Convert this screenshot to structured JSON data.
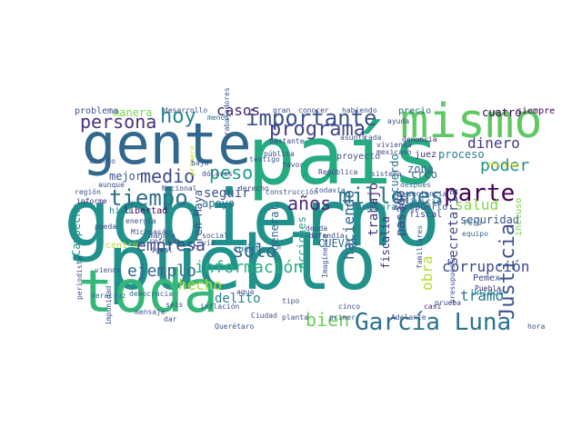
{
  "cloud": {
    "words": [
      {
        "text": "gobierno",
        "color": "#21918c"
      },
      {
        "text": "pueblo",
        "color": "#21918c"
      },
      {
        "text": "país",
        "color": "#25ab82"
      },
      {
        "text": "gente",
        "color": "#31688e"
      },
      {
        "text": "toda",
        "color": "#35b779"
      },
      {
        "text": "mismo",
        "color": "#5ec962"
      },
      {
        "text": "García Luna",
        "color": "#2c728e"
      },
      {
        "text": "importante",
        "color": "#3b528b"
      },
      {
        "text": "parte",
        "color": "#440154"
      },
      {
        "text": "tiempo",
        "color": "#2e6f8e"
      },
      {
        "text": "millones",
        "color": "#2a788e"
      },
      {
        "text": "programa",
        "color": "#414487"
      },
      {
        "text": "hoy",
        "color": "#25858e"
      },
      {
        "text": "persona",
        "color": "#46327e"
      },
      {
        "text": "peso",
        "color": "#1f9e89"
      },
      {
        "text": "medio",
        "color": "#3e4989"
      },
      {
        "text": "información",
        "color": "#29af7f"
      },
      {
        "text": "ejemplo",
        "color": "#31688e"
      },
      {
        "text": "Justicia",
        "color": "#3b528b"
      },
      {
        "text": "años",
        "color": "#482878"
      },
      {
        "text": "sólo",
        "color": "#31688e"
      },
      {
        "text": "poder",
        "color": "#218f8d"
      },
      {
        "text": "empresa",
        "color": "#3e4989"
      },
      {
        "text": "bien",
        "color": "#6ece58"
      },
      {
        "text": "hecho",
        "color": "#a5db36"
      },
      {
        "text": "corrupción",
        "color": "#3e4989"
      },
      {
        "text": "tramo",
        "color": "#2a788e"
      },
      {
        "text": "dinero",
        "color": "#443983"
      },
      {
        "text": "salud",
        "color": "#84d44b"
      },
      {
        "text": "casos",
        "color": "#482475"
      },
      {
        "text": "delito",
        "color": "#26828e"
      },
      {
        "text": "haciendo",
        "color": "#31688e"
      },
      {
        "text": "obra",
        "color": "#b5de2b"
      },
      {
        "text": "Secretaría",
        "color": "#3e4989"
      },
      {
        "text": "pasado",
        "color": "#414487"
      },
      {
        "text": "seguir",
        "color": "#3b528b"
      },
      {
        "text": "trabajo",
        "color": "#46327e"
      },
      {
        "text": "apoyo",
        "color": "#2c728e"
      },
      {
        "text": "zona",
        "color": "#34618d"
      },
      {
        "text": "creo",
        "color": "#355f8d"
      },
      {
        "text": "seguridad",
        "color": "#3b528b"
      },
      {
        "text": "proceso",
        "color": "#287c8e"
      },
      {
        "text": "CUEVAS",
        "color": "#31688e"
      },
      {
        "text": "fiscalía",
        "color": "#46327e"
      },
      {
        "text": "acuerdo",
        "color": "#2c728e"
      },
      {
        "text": "general",
        "color": "#31688e"
      },
      {
        "text": "acciones",
        "color": "#1f9e89"
      },
      {
        "text": "Tren Maya",
        "color": "#3b528b"
      },
      {
        "text": "manera",
        "color": "#7ad151"
      },
      {
        "text": "cuatro",
        "color": "#440154"
      },
      {
        "text": "mejor",
        "color": "#3b528b"
      },
      {
        "text": "Campeche",
        "color": "#21918c"
      },
      {
        "text": "cuenta",
        "color": "#2c728e"
      },
      {
        "text": "juicio",
        "color": "#31688e"
      },
      {
        "text": "fiscal",
        "color": "#3e4989"
      },
      {
        "text": "Unidos",
        "color": "#26828e"
      },
      {
        "text": "incluso",
        "color": "#7ad151"
      },
      {
        "text": "Pemex",
        "color": "#3e4989"
      },
      {
        "text": "juez",
        "color": "#46327e"
      },
      {
        "text": "problema",
        "color": "#3b528b"
      },
      {
        "text": "precio",
        "color": "#31688e"
      },
      {
        "text": "siempre",
        "color": "#440154"
      },
      {
        "text": "proyecto",
        "color": "#3b528b"
      },
      {
        "text": "sonora",
        "color": "#25858e"
      },
      {
        "text": "aeropuerto",
        "color": "#3b528b"
      },
      {
        "text": "través",
        "color": "#2c728e"
      },
      {
        "text": "libertad",
        "color": "#440154"
      },
      {
        "text": "hizo",
        "color": "#26828e"
      },
      {
        "text": "región",
        "color": "#3b528b"
      },
      {
        "text": "informe",
        "color": "#482878"
      },
      {
        "text": "desarrollo",
        "color": "#3e4989"
      },
      {
        "text": "menos",
        "color": "#2c728e"
      },
      {
        "text": "centro",
        "color": "#b5de2b"
      },
      {
        "text": "inflación",
        "color": "#3b528b"
      },
      {
        "text": "democracia",
        "color": "#31688e"
      },
      {
        "text": "Veracruz",
        "color": "#2c728e"
      },
      {
        "text": "planta",
        "color": "#3b528b"
      },
      {
        "text": "Ciudad",
        "color": "#3b528b"
      },
      {
        "text": "Querétaro",
        "color": "#3b528b"
      },
      {
        "text": "hora",
        "color": "#3b528b"
      },
      {
        "text": "casi",
        "color": "#482878"
      },
      {
        "text": "equipo",
        "color": "#31688e"
      },
      {
        "text": "Puebla",
        "color": "#46327e"
      },
      {
        "text": "Perú",
        "color": "#2c728e"
      },
      {
        "text": "Morelos",
        "color": "#fde725"
      },
      {
        "text": "testigo",
        "color": "#3b528b"
      },
      {
        "text": "favor",
        "color": "#3e4989"
      },
      {
        "text": "primero",
        "color": "#bddf26"
      },
      {
        "text": "dólares",
        "color": "#3e4989"
      },
      {
        "text": "después",
        "color": "#2c728e"
      },
      {
        "text": "sentencia",
        "color": "#3b528b"
      },
      {
        "text": "vivienda",
        "color": "#3e4989"
      },
      {
        "text": "mexicano",
        "color": "#3e4989"
      },
      {
        "text": "ayuda",
        "color": "#3e4989"
      },
      {
        "text": "denuncia",
        "color": "#482878"
      },
      {
        "text": "asunto",
        "color": "#3b528b"
      },
      {
        "text": "bastante",
        "color": "#3e4989"
      },
      {
        "text": "habiendo",
        "color": "#3b528b"
      },
      {
        "text": "conocer",
        "color": "#3e4989"
      },
      {
        "text": "gran",
        "color": "#3e4989"
      },
      {
        "text": "cada",
        "color": "#3b528b"
      },
      {
        "text": "pública",
        "color": "#3e4989"
      },
      {
        "text": "baja",
        "color": "#3b528b"
      },
      {
        "text": "derecho",
        "color": "#3e4989"
      },
      {
        "text": "social",
        "color": "#3b528b"
      },
      {
        "text": "vía",
        "color": "#3b528b"
      },
      {
        "text": "Nacional",
        "color": "#3e4989"
      },
      {
        "text": "todavía",
        "color": "#3b528b"
      },
      {
        "text": "deuda",
        "color": "#3e4989"
      },
      {
        "text": "Imagínense",
        "color": "#3b528b"
      },
      {
        "text": "cinco",
        "color": "#3e4989"
      },
      {
        "text": "prueba",
        "color": "#3e4989"
      },
      {
        "text": "Adelante",
        "color": "#3b528b"
      },
      {
        "text": "familiares",
        "color": "#3b528b"
      },
      {
        "text": "viendo",
        "color": "#3b528b"
      },
      {
        "text": "pueda",
        "color": "#3e4989"
      },
      {
        "text": "seis",
        "color": "#3b528b"
      },
      {
        "text": "dar",
        "color": "#3b528b"
      },
      {
        "text": "agua",
        "color": "#3e4989"
      },
      {
        "text": "cierto",
        "color": "#3b528b"
      },
      {
        "text": "aunque",
        "color": "#3b528b"
      },
      {
        "text": "Michoacán",
        "color": "#3e4989"
      },
      {
        "text": "reforma",
        "color": "#3b528b"
      },
      {
        "text": "igual",
        "color": "#3b528b"
      },
      {
        "text": "mañana",
        "color": "#3b528b"
      },
      {
        "text": "energía",
        "color": "#3b528b"
      },
      {
        "text": "construcción",
        "color": "#3b528b"
      },
      {
        "text": "República",
        "color": "#3e4989"
      },
      {
        "text": "sistema",
        "color": "#3b528b"
      },
      {
        "text": "primer",
        "color": "#3b528b"
      },
      {
        "text": "defendía",
        "color": "#3e4989"
      },
      {
        "text": "mensaje",
        "color": "#3b528b"
      },
      {
        "text": "impunidad",
        "color": "#3b528b"
      },
      {
        "text": "periodista",
        "color": "#3b528b"
      },
      {
        "text": "tipo",
        "color": "#3b528b"
      },
      {
        "text": "trabajadores",
        "color": "#3b528b"
      },
      {
        "text": "Tren",
        "color": "#3b528b"
      },
      {
        "text": "presupuesto",
        "color": "#3b528b"
      }
    ]
  }
}
